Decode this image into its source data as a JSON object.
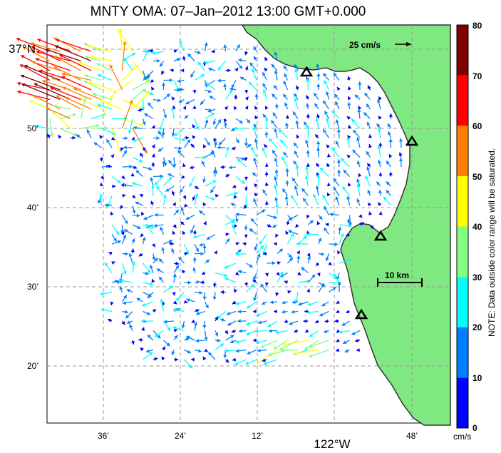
{
  "title": "MNTY OMA: 07–Jan–2012 13:00 GMT+0.000",
  "axes": {
    "lat_ticks": [
      "37°N",
      "50’",
      "40’",
      "30’",
      "20’"
    ],
    "lon_ticks": [
      "36’",
      "24’",
      "12’",
      "122°W",
      "48’"
    ]
  },
  "scale_arrow_label": "25 cm/s",
  "distance_scale_label": "10 km",
  "colorbar": {
    "ticks": [
      "80",
      "70",
      "60",
      "50",
      "40",
      "30",
      "20",
      "10",
      "0"
    ],
    "unit": "cm/s",
    "colors": [
      "#0000ff",
      "#0080ff",
      "#00ffff",
      "#80ff80",
      "#ffff00",
      "#ff8000",
      "#ff0000",
      "#800000"
    ],
    "note": "NOTE: Data outside color range will be saturated."
  },
  "colors": {
    "land": "#80e880",
    "coast": "#333333",
    "grid": "#999999"
  }
}
